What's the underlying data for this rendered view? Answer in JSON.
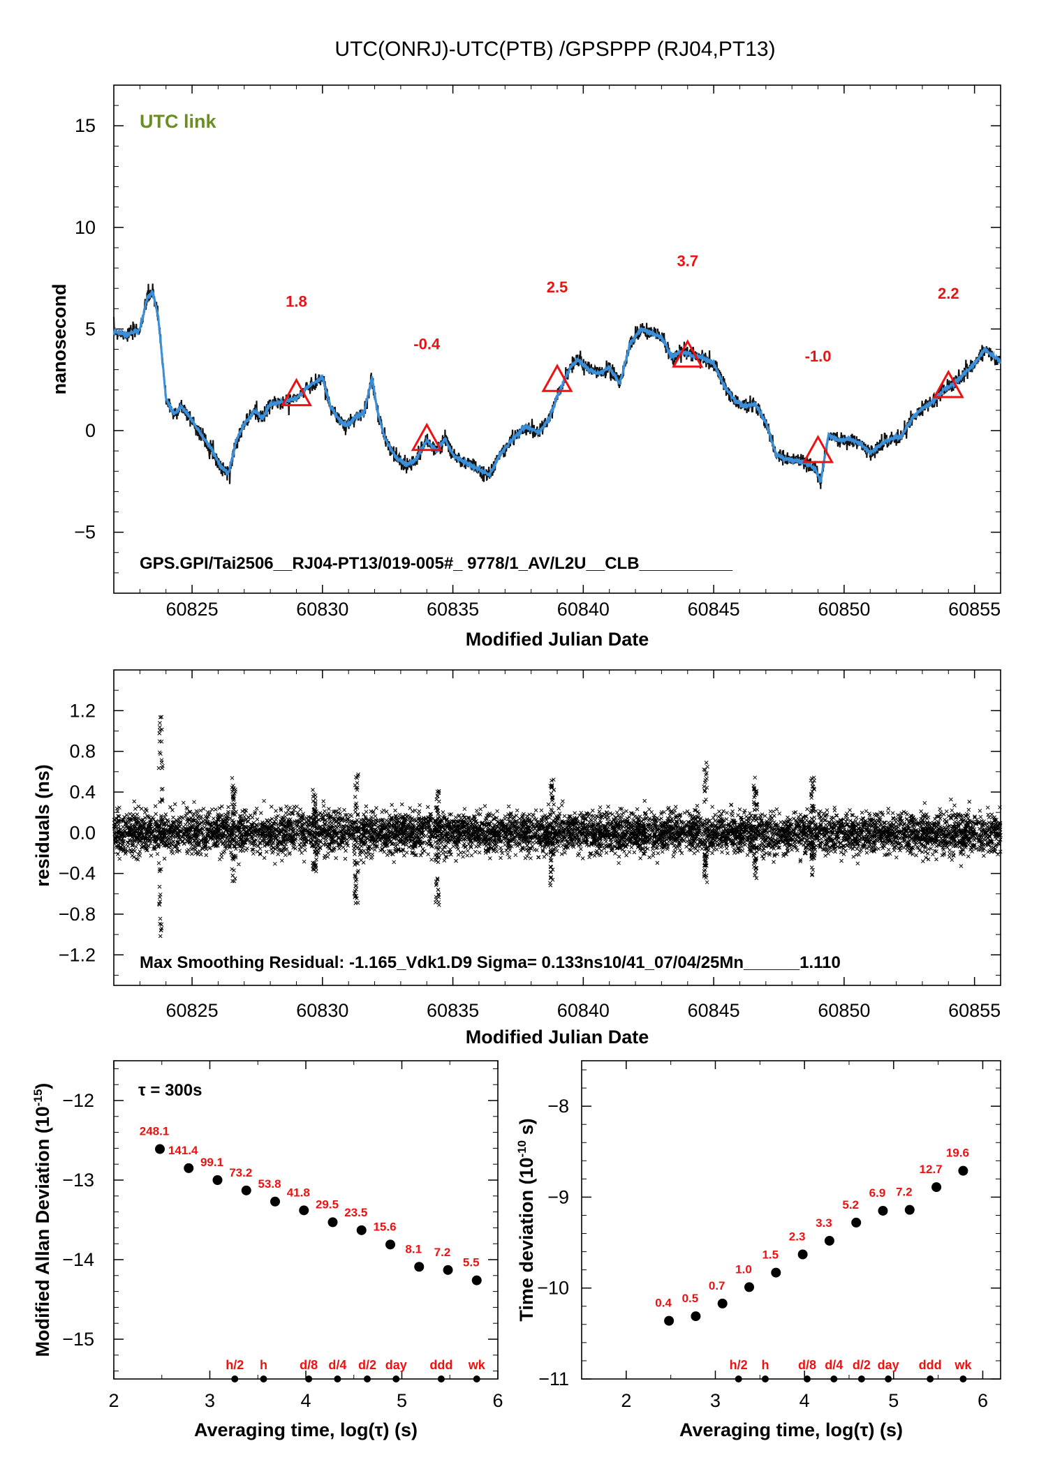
{
  "title": "UTC(ONRJ)-UTC(PTB)  /GPSPPP  (RJ04,PT13)",
  "colors": {
    "link_label": "#6b8e23",
    "series": "#3a8fd8",
    "markers": "#ee1111",
    "points": "#111111"
  },
  "chart_data": [
    {
      "id": "timelink",
      "type": "line",
      "badge": "UTC link",
      "ylabel": "nanosecond",
      "xlabel": "Modified Julian Date",
      "xlim": [
        60822,
        60856
      ],
      "ylim": [
        -8,
        17
      ],
      "xticks": [
        60825,
        60830,
        60835,
        60840,
        60845,
        60850,
        60855
      ],
      "yticks": [
        -5,
        0,
        5,
        10,
        15
      ],
      "footer": "GPS.GPI/Tai2506__RJ04-PT13/019-005#_  9778/1_AV/L2U__CLB__________",
      "x": [
        60822.0,
        60822.5,
        60823.0,
        60823.3,
        60823.5,
        60823.7,
        60824.0,
        60824.3,
        60824.6,
        60825.0,
        60825.4,
        60825.8,
        60826.1,
        60826.4,
        60826.7,
        60827.0,
        60827.4,
        60827.7,
        60828.0,
        60828.5,
        60829.0,
        60829.5,
        60830.0,
        60830.3,
        60830.6,
        60830.9,
        60831.3,
        60831.6,
        60831.9,
        60832.1,
        60832.4,
        60832.8,
        60833.2,
        60833.6,
        60834.0,
        60834.4,
        60834.7,
        60835.0,
        60835.5,
        60836.0,
        60836.4,
        60836.8,
        60837.3,
        60837.8,
        60838.3,
        60838.7,
        60839.1,
        60839.5,
        60839.8,
        60840.2,
        60840.6,
        60841.0,
        60841.4,
        60841.8,
        60842.2,
        60842.6,
        60843.0,
        60843.4,
        60843.8,
        60844.2,
        60844.6,
        60845.0,
        60845.4,
        60845.8,
        60846.2,
        60846.6,
        60847.0,
        60847.4,
        60847.8,
        60848.2,
        60848.6,
        60848.9,
        60849.1,
        60849.4,
        60849.8,
        60850.2,
        60850.6,
        60851.0,
        60851.4,
        60851.8,
        60852.2,
        60852.6,
        60853.0,
        60853.4,
        60853.8,
        60854.2,
        60854.6,
        60855.0,
        60855.4,
        60856.0
      ],
      "y": [
        4.9,
        4.7,
        5.0,
        6.6,
        6.8,
        5.6,
        1.6,
        0.8,
        1.2,
        0.5,
        -0.3,
        -1.0,
        -1.8,
        -2.1,
        -0.5,
        0.3,
        1.0,
        0.6,
        1.3,
        1.4,
        1.6,
        2.2,
        2.6,
        1.2,
        0.6,
        0.2,
        0.7,
        0.9,
        2.6,
        1.0,
        -0.4,
        -1.3,
        -1.7,
        -1.4,
        -0.5,
        -1.0,
        -0.4,
        -1.2,
        -1.6,
        -1.9,
        -2.2,
        -1.2,
        -0.4,
        0.2,
        -0.1,
        0.6,
        2.0,
        3.1,
        3.5,
        3.0,
        2.8,
        3.1,
        2.3,
        4.3,
        5.0,
        4.8,
        4.6,
        3.6,
        3.9,
        3.7,
        3.6,
        3.3,
        2.2,
        1.5,
        1.2,
        1.3,
        0.4,
        -1.2,
        -1.4,
        -1.5,
        -1.6,
        -1.9,
        -2.5,
        -0.2,
        -0.5,
        -0.4,
        -0.6,
        -1.1,
        -0.7,
        -0.4,
        -0.3,
        0.6,
        1.1,
        1.4,
        2.0,
        2.3,
        2.8,
        3.3,
        4.0,
        3.4
      ],
      "markers": [
        {
          "x": 60829,
          "y": 1.8,
          "label": "1.8"
        },
        {
          "x": 60834,
          "y": -0.4,
          "label": "-0.4"
        },
        {
          "x": 60839,
          "y": 2.5,
          "label": "2.5"
        },
        {
          "x": 60844,
          "y": 3.7,
          "label": "3.7"
        },
        {
          "x": 60849,
          "y": -1.0,
          "label": "-1.0"
        },
        {
          "x": 60854,
          "y": 2.2,
          "label": "2.2"
        }
      ]
    },
    {
      "id": "residuals",
      "type": "scatter",
      "ylabel": "residuals (ns)",
      "xlabel": "Modified Julian Date",
      "xlim": [
        60822,
        60856
      ],
      "ylim": [
        -1.5,
        1.6
      ],
      "xticks": [
        60825,
        60830,
        60835,
        60840,
        60845,
        60850,
        60855
      ],
      "yticks": [
        -1.2,
        -0.8,
        -0.4,
        0.0,
        0.4,
        0.8,
        1.2
      ],
      "ytick_labels": [
        "−1.2",
        "−0.8",
        "−0.4",
        "0.0",
        "0.4",
        "0.8",
        "1.2"
      ],
      "footer": "Max Smoothing Residual: -1.165_Vdk1.D9  Sigma= 0.133ns10/41_07/04/25Mn______1.110",
      "sigma": 0.133,
      "max_residual": -1.165,
      "spikes": [
        {
          "x": 60823.8,
          "max": 1.15,
          "min": -1.12
        },
        {
          "x": 60826.6,
          "max": 0.55,
          "min": -0.5
        },
        {
          "x": 60829.7,
          "max": 0.48,
          "min": -0.42
        },
        {
          "x": 60831.3,
          "max": 0.65,
          "min": -0.7
        },
        {
          "x": 60834.4,
          "max": 0.42,
          "min": -0.72
        },
        {
          "x": 60838.8,
          "max": 0.55,
          "min": -0.55
        },
        {
          "x": 60844.7,
          "max": 0.7,
          "min": -0.5
        },
        {
          "x": 60846.6,
          "max": 0.55,
          "min": -0.45
        },
        {
          "x": 60848.8,
          "max": 0.55,
          "min": -0.42
        }
      ]
    },
    {
      "id": "mdev",
      "type": "scatter",
      "ylabel": "Modified Allan Deviation (10",
      "ylabel_exp": "-15",
      "ylabel_tail": ")",
      "xlabel": "Averaging time, log(τ) (s)",
      "xlim": [
        2,
        6
      ],
      "ylim": [
        -15.5,
        -11.5
      ],
      "xticks": [
        2,
        3,
        4,
        5,
        6
      ],
      "yticks": [
        -15,
        -14,
        -13,
        -12
      ],
      "ytick_labels": [
        "−15",
        "−14",
        "−13",
        "−12"
      ],
      "tau_note": "τ = 300s",
      "x": [
        2.48,
        2.78,
        3.08,
        3.38,
        3.68,
        3.98,
        4.28,
        4.58,
        4.88,
        5.18,
        5.48,
        5.78
      ],
      "y": [
        -12.61,
        -12.85,
        -13.0,
        -13.13,
        -13.27,
        -13.38,
        -13.53,
        -13.63,
        -13.81,
        -14.09,
        -14.13,
        -14.26
      ],
      "labels": [
        "248.1",
        "141.4",
        "99.1",
        "73.2",
        "53.8",
        "41.8",
        "29.5",
        "23.5",
        "15.6",
        "8.1",
        "7.2",
        "5.5"
      ],
      "ref_marks": [
        {
          "x": 3.26,
          "label": "h/2"
        },
        {
          "x": 3.56,
          "label": "h"
        },
        {
          "x": 4.03,
          "label": "d/8"
        },
        {
          "x": 4.33,
          "label": "d/4"
        },
        {
          "x": 4.64,
          "label": "d/2"
        },
        {
          "x": 4.94,
          "label": "day"
        },
        {
          "x": 5.41,
          "label": "ddd"
        },
        {
          "x": 5.78,
          "label": "wk"
        }
      ]
    },
    {
      "id": "tdev",
      "type": "scatter",
      "ylabel": "Time deviation (10",
      "ylabel_exp": "-10",
      "ylabel_tail": " s)",
      "xlabel": "Averaging time, log(τ) (s)",
      "xlim": [
        1.5,
        6.2
      ],
      "ylim": [
        -11,
        -7.5
      ],
      "xticks": [
        2,
        3,
        4,
        5,
        6
      ],
      "yticks": [
        -11,
        -10,
        -9,
        -8
      ],
      "ytick_labels": [
        "−11",
        "−10",
        "−9",
        "−8"
      ],
      "x": [
        2.48,
        2.78,
        3.08,
        3.38,
        3.68,
        3.98,
        4.28,
        4.58,
        4.88,
        5.18,
        5.48,
        5.78
      ],
      "y": [
        -10.36,
        -10.31,
        -10.17,
        -9.99,
        -9.83,
        -9.63,
        -9.48,
        -9.28,
        -9.15,
        -9.14,
        -8.89,
        -8.71
      ],
      "labels": [
        "0.4",
        "0.5",
        "0.7",
        "1.0",
        "1.5",
        "2.3",
        "3.3",
        "5.2",
        "6.9",
        "7.2",
        "12.7",
        "19.6"
      ],
      "ref_marks": [
        {
          "x": 3.26,
          "label": "h/2"
        },
        {
          "x": 3.56,
          "label": "h"
        },
        {
          "x": 4.03,
          "label": "d/8"
        },
        {
          "x": 4.33,
          "label": "d/4"
        },
        {
          "x": 4.64,
          "label": "d/2"
        },
        {
          "x": 4.94,
          "label": "day"
        },
        {
          "x": 5.41,
          "label": "ddd"
        },
        {
          "x": 5.78,
          "label": "wk"
        }
      ]
    }
  ]
}
